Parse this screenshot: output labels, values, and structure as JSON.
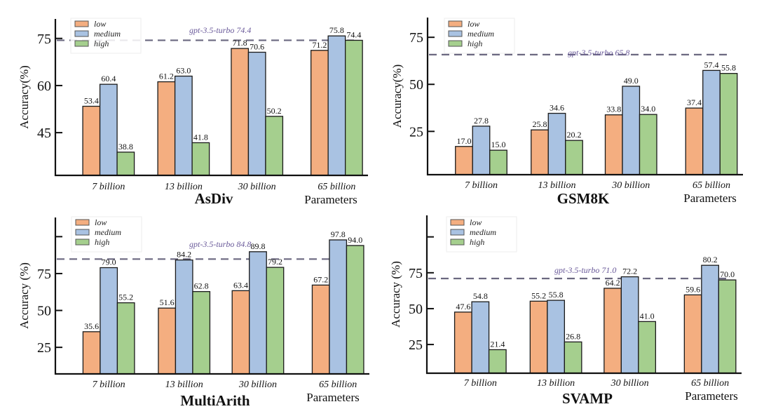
{
  "figure": {
    "x_axis_caption": "Parameters"
  },
  "colors": {
    "low": "#F4AE80",
    "medium": "#A9C2E2",
    "high": "#A5CF8E",
    "reference_line": "#6B6880",
    "reference_text": "#6A5A9A"
  },
  "chart_data": [
    {
      "type": "bar",
      "title": "AsDiv",
      "xlabel": "Parameters",
      "ylabel": "Accuracy(%)",
      "categories": [
        "7 billion",
        "13 billion",
        "30 billion",
        "65 billion"
      ],
      "series": [
        {
          "name": "low",
          "values": [
            53.4,
            61.2,
            71.8,
            71.2
          ]
        },
        {
          "name": "medium",
          "values": [
            60.4,
            63.0,
            70.6,
            75.8
          ]
        },
        {
          "name": "high",
          "values": [
            38.8,
            41.8,
            50.2,
            74.4
          ]
        }
      ],
      "value_labels": [
        [
          "53.4",
          "61.2",
          "71.8",
          "71.2"
        ],
        [
          "60.4",
          "63.0",
          "70.6",
          "75.8"
        ],
        [
          "38.8",
          "41.8",
          "50.2",
          "74.4"
        ]
      ],
      "yticks": [
        45,
        60,
        75
      ],
      "ytick_labels": [
        "45",
        "60",
        "75"
      ],
      "ylim": [
        31.4,
        81.2
      ],
      "reference": {
        "label": "gpt-3.5-turbo 74.4",
        "value": 74.4
      },
      "legend": {
        "entries": [
          "low",
          "medium",
          "high"
        ],
        "placement": "top-left"
      },
      "grid": false
    },
    {
      "type": "bar",
      "title": "GSM8K",
      "xlabel": "Parameters",
      "ylabel": "Accuracy(%)",
      "categories": [
        "7 billion",
        "13 billion",
        "30 billion",
        "65 billion"
      ],
      "series": [
        {
          "name": "low",
          "values": [
            17.0,
            25.8,
            33.8,
            37.4
          ]
        },
        {
          "name": "medium",
          "values": [
            27.8,
            34.6,
            49.0,
            57.4
          ]
        },
        {
          "name": "high",
          "values": [
            15.0,
            20.2,
            34.0,
            55.8
          ]
        }
      ],
      "value_labels": [
        [
          "17.0",
          "25.8",
          "33.8",
          "37.4"
        ],
        [
          "27.8",
          "34.6",
          "49.0",
          "57.4"
        ],
        [
          "15.0",
          "20.2",
          "34.0",
          "55.8"
        ]
      ],
      "yticks": [
        25,
        50,
        75
      ],
      "ytick_labels": [
        "25",
        "50",
        "75"
      ],
      "ylim": [
        2,
        85.5
      ],
      "reference": {
        "label": "gpt-3.5-turbo 65.8",
        "value": 65.8
      },
      "legend": {
        "entries": [
          "low",
          "medium",
          "high"
        ],
        "placement": "top-left"
      },
      "grid": false
    },
    {
      "type": "bar",
      "title": "MultiArith",
      "xlabel": "Parameters",
      "ylabel": "Accuracy (%)",
      "categories": [
        "7 billion",
        "13 billion",
        "30 billion",
        "65 billion"
      ],
      "series": [
        {
          "name": "low",
          "values": [
            35.6,
            51.6,
            63.4,
            67.2
          ]
        },
        {
          "name": "medium",
          "values": [
            79.0,
            84.2,
            89.8,
            97.8
          ]
        },
        {
          "name": "high",
          "values": [
            55.2,
            62.8,
            79.2,
            94.0
          ]
        }
      ],
      "value_labels": [
        [
          "35.6",
          "51.6",
          "63.4",
          "67.2"
        ],
        [
          "79.0",
          "84.2",
          "89.8",
          "97.8"
        ],
        [
          "55.2",
          "62.8",
          "79.2",
          "94.0"
        ]
      ],
      "yticks": [
        25,
        50,
        75,
        100
      ],
      "ytick_labels": [
        "25",
        "50",
        "75",
        ""
      ],
      "ylim": [
        7,
        113
      ],
      "reference": {
        "label": "gpt-3.5-turbo 84.8",
        "value": 84.8
      },
      "legend": {
        "entries": [
          "low",
          "medium",
          "high"
        ],
        "placement": "top-left"
      },
      "grid": false
    },
    {
      "type": "bar",
      "title": "SVAMP",
      "xlabel": "Parameters",
      "ylabel": "Accuracy (%)",
      "categories": [
        "7 billion",
        "13 billion",
        "30 billion",
        "65 billion"
      ],
      "series": [
        {
          "name": "low",
          "values": [
            47.6,
            55.2,
            64.2,
            59.6
          ]
        },
        {
          "name": "medium",
          "values": [
            54.8,
            55.8,
            72.2,
            80.2
          ]
        },
        {
          "name": "high",
          "values": [
            21.4,
            26.8,
            41.0,
            70.0
          ]
        }
      ],
      "value_labels": [
        [
          "47.6",
          "55.2",
          "64.2",
          "59.6"
        ],
        [
          "54.8",
          "55.8",
          "72.2",
          "80.2"
        ],
        [
          "21.4",
          "26.8",
          "41.0",
          "70.0"
        ]
      ],
      "yticks": [
        25,
        50,
        75,
        100
      ],
      "ytick_labels": [
        "25",
        "50",
        "75",
        ""
      ],
      "ylim": [
        5,
        115
      ],
      "reference": {
        "label": "gpt-3.5-turbo 71.0",
        "value": 71.0
      },
      "legend": {
        "entries": [
          "low",
          "medium",
          "high"
        ],
        "placement": "top-left"
      },
      "grid": false
    }
  ]
}
